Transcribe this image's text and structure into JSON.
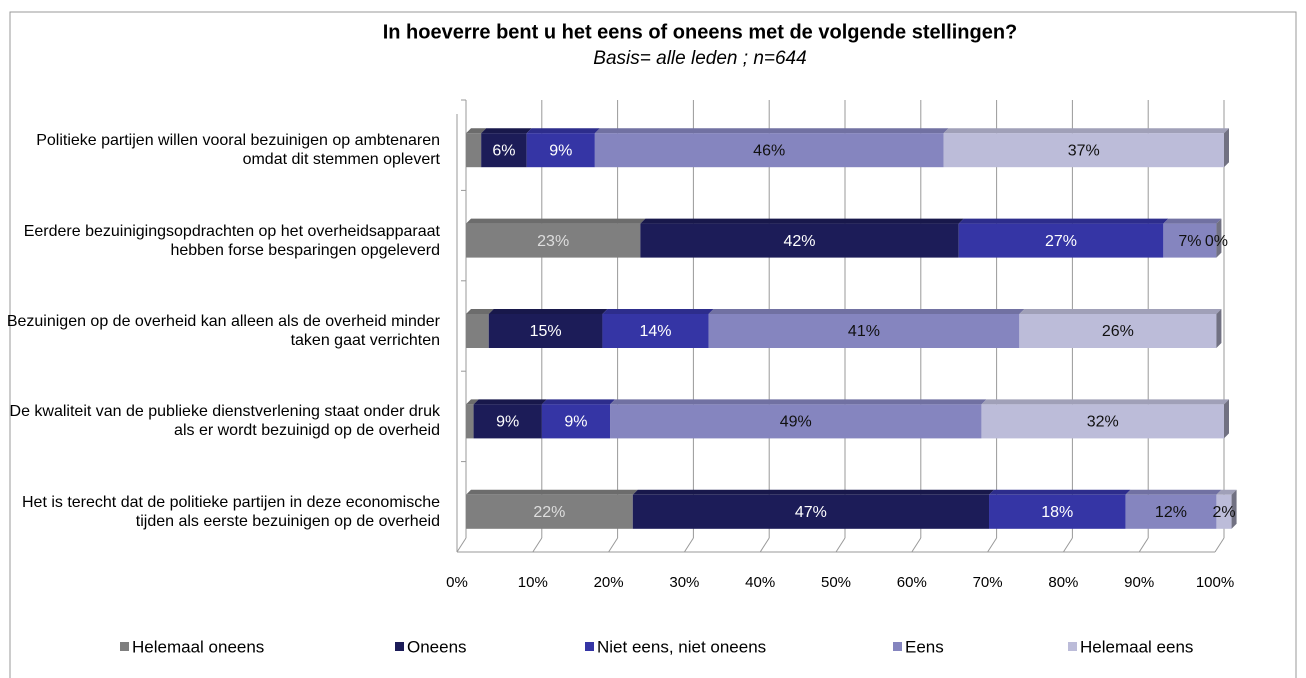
{
  "chart_data": {
    "type": "stacked_barh",
    "title": "In hoeverre bent u het eens of oneens met de volgende stellingen?",
    "subtitle": "Basis= alle leden ; n=644",
    "categories": [
      "Politieke partijen willen vooral bezuinigen op ambtenaren omdat dit stemmen oplevert",
      "Eerdere bezuinigingsopdrachten op het overheidsapparaat hebben forse besparingen opgeleverd",
      "Bezuinigen op de overheid kan alleen als de overheid minder taken gaat verrichten",
      "De kwaliteit van de publieke dienstverlening staat onder druk als er wordt bezuinigd op de overheid",
      "Het is terecht dat de politieke partijen in deze economische tijden als eerste bezuinigen op de overheid"
    ],
    "series": [
      {
        "name": "Helemaal oneens",
        "color": "#7f7f7f",
        "values": [
          2,
          23,
          3,
          1,
          22
        ],
        "value_labels": [
          null,
          "23%",
          null,
          null,
          "22%"
        ]
      },
      {
        "name": "Oneens",
        "color": "#1c1c58",
        "values": [
          6,
          42,
          15,
          9,
          47
        ],
        "value_labels": [
          "6%",
          "42%",
          "15%",
          "9%",
          "47%"
        ]
      },
      {
        "name": "Niet eens, niet oneens",
        "color": "#3535a5",
        "values": [
          9,
          27,
          14,
          9,
          18
        ],
        "value_labels": [
          "9%",
          "27%",
          "14%",
          "9%",
          "18%"
        ]
      },
      {
        "name": "Eens",
        "color": "#8585bf",
        "values": [
          46,
          7,
          41,
          49,
          12
        ],
        "value_labels": [
          "46%",
          "7%",
          "41%",
          "49%",
          "12%"
        ]
      },
      {
        "name": "Helemaal eens",
        "color": "#bcbcd9",
        "values": [
          37,
          0,
          26,
          32,
          2
        ],
        "value_labels": [
          "37%",
          "0%",
          "26%",
          "32%",
          "2%"
        ]
      }
    ],
    "xlim": [
      0,
      100
    ],
    "xticks": [
      {
        "value": 0,
        "label": "0%"
      },
      {
        "value": 10,
        "label": "10%"
      },
      {
        "value": 20,
        "label": "20%"
      },
      {
        "value": 30,
        "label": "30%"
      },
      {
        "value": 40,
        "label": "40%"
      },
      {
        "value": 50,
        "label": "50%"
      },
      {
        "value": 60,
        "label": "60%"
      },
      {
        "value": 70,
        "label": "70%"
      },
      {
        "value": 80,
        "label": "80%"
      },
      {
        "value": 90,
        "label": "90%"
      },
      {
        "value": 100,
        "label": "100%"
      }
    ],
    "grid": true,
    "legend": "bottom"
  }
}
